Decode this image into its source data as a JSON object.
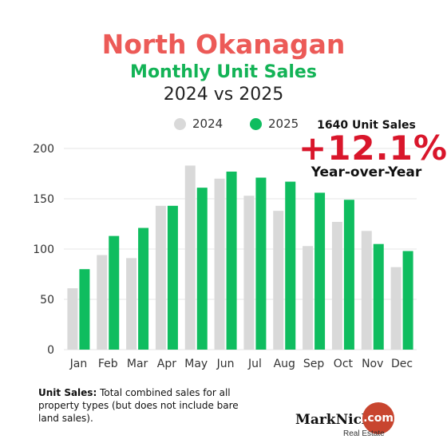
{
  "colors": {
    "title_red": "#ec5a57",
    "title_green": "#13b356",
    "bar_2024": "#d9d9d9",
    "bar_2025": "#0fbd5f",
    "percent_red": "#d9162b",
    "logo_red": "#c8452f",
    "axis_text": "#333333"
  },
  "header": {
    "title": "North Okanagan",
    "subtitle": "Monthly Unit Sales",
    "comparison": "2024 vs 2025"
  },
  "highlight": {
    "units": "1640 Unit Sales",
    "percent": "+12.1%",
    "label": "Year-over-Year"
  },
  "footnote": {
    "label": "Unit Sales:",
    "text": "Total combined sales for all property types (but does not include bare land sales)."
  },
  "logo": {
    "name": "MarkNich",
    "suffix": ".com",
    "tagline": "Real Estate"
  },
  "chart_data": {
    "type": "bar",
    "categories": [
      "Jan",
      "Feb",
      "Mar",
      "Apr",
      "May",
      "Jun",
      "Jul",
      "Aug",
      "Sep",
      "Oct",
      "Nov",
      "Dec"
    ],
    "series": [
      {
        "name": "2024",
        "values": [
          61,
          94,
          91,
          143,
          183,
          170,
          153,
          138,
          103,
          127,
          118,
          82
        ]
      },
      {
        "name": "2025",
        "values": [
          80,
          113,
          121,
          143,
          161,
          177,
          171,
          167,
          156,
          149,
          105,
          98
        ]
      }
    ],
    "ylim": [
      0,
      200
    ],
    "yticks": [
      0,
      50,
      100,
      150,
      200
    ],
    "grid": "y",
    "legend": "top"
  }
}
